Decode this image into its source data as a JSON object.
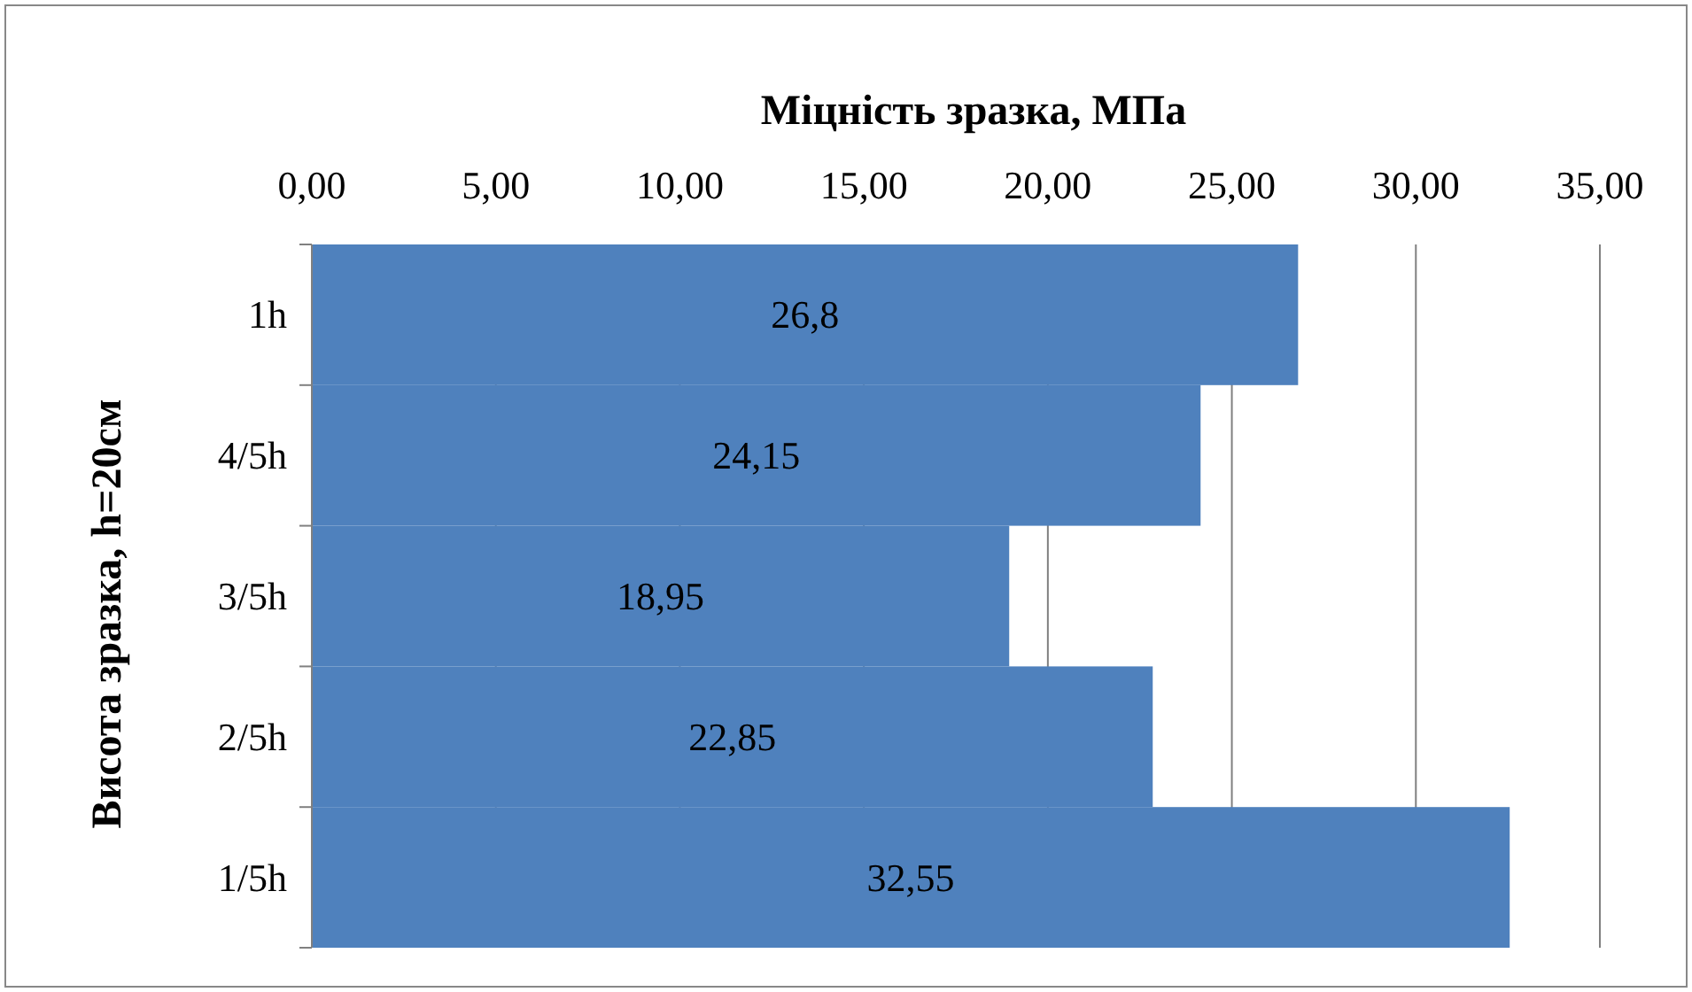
{
  "chart_data": {
    "type": "bar",
    "orientation": "horizontal",
    "xlabel": "Міцність зразка, МПа",
    "ylabel": "Висота зразка, h=20см",
    "categories": [
      "1h",
      "4/5h",
      "3/5h",
      "2/5h",
      "1/5h"
    ],
    "values": [
      26.8,
      24.15,
      18.95,
      22.85,
      32.55
    ],
    "color": "#4f81bd",
    "value_labels": [
      "26,8",
      "24,15",
      "18,95",
      "22,85",
      "32,55"
    ],
    "xlim": [
      0,
      35
    ],
    "xticks": [
      {
        "value": 0,
        "label": "0,00"
      },
      {
        "value": 5,
        "label": "5,00"
      },
      {
        "value": 10,
        "label": "10,00"
      },
      {
        "value": 15,
        "label": "15,00"
      },
      {
        "value": 20,
        "label": "20,00"
      },
      {
        "value": 25,
        "label": "25,00"
      },
      {
        "value": 30,
        "label": "30,00"
      },
      {
        "value": 35,
        "label": "35,00"
      }
    ],
    "grid": "x"
  }
}
